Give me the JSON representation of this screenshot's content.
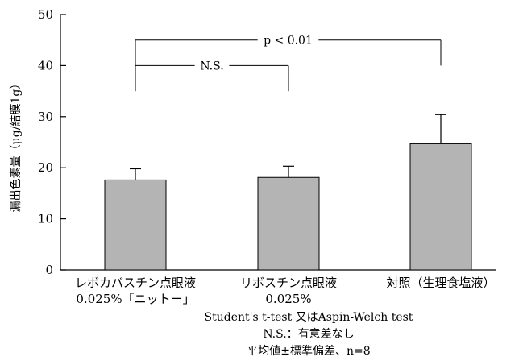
{
  "chart_data": {
    "type": "bar",
    "ylabel": "漏出色素量（μg/結膜1g）",
    "ylim": [
      0,
      50
    ],
    "yticks": [
      0,
      10,
      20,
      30,
      40,
      50
    ],
    "categories": [
      [
        "レボカバスチン点眼液",
        "0.025%「ニットー」"
      ],
      [
        "リボスチン点眼液",
        "0.025%"
      ],
      [
        "対照（生理食塩液）"
      ]
    ],
    "values": [
      17.6,
      18.1,
      24.7
    ],
    "errors": [
      2.2,
      2.2,
      5.7
    ],
    "bar_color": "#b4b4b4",
    "significance": [
      {
        "label": "p < 0.01",
        "from": 0,
        "to": 2,
        "y": 45,
        "drop_to": 40
      },
      {
        "label": "N.S.",
        "from": 0,
        "to": 1,
        "y": 40,
        "drop_to": 35
      }
    ]
  },
  "notes": [
    "Student's t-test 又はAspin-Welch test",
    "N.S.：有意差なし",
    "平均値±標準偏差、n=8"
  ]
}
